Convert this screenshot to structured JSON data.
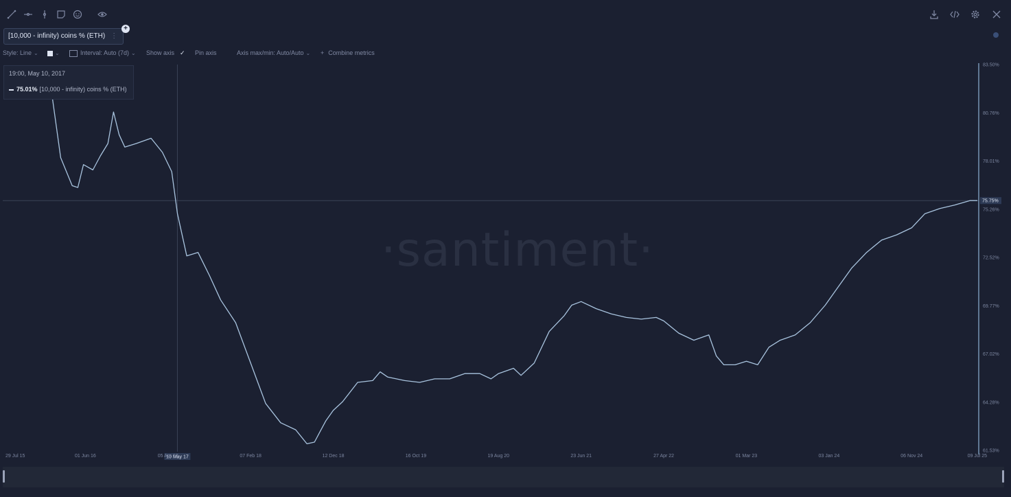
{
  "toolbar": {
    "left_icons": [
      "line-draw-icon",
      "horizontal-ray-icon",
      "vertical-line-icon",
      "sticky-note-icon",
      "emoji-icon",
      "eye-icon"
    ],
    "right_icons": [
      "download-icon",
      "embed-code-icon",
      "settings-gear-icon",
      "close-icon"
    ]
  },
  "metric": {
    "label": "[10,000 - infinity) coins % (ETH)",
    "dots": "⋮",
    "add": "+"
  },
  "settings": {
    "style": "Style: Line",
    "interval": "Interval: Auto (7d)",
    "show_axis": "Show axis",
    "pin_axis": "Pin axis",
    "axis_maxmin": "Axis max/min: Auto/Auto",
    "combine": "Combine metrics",
    "combine_plus": "+"
  },
  "tooltip": {
    "date": "19:00, May 10, 2017",
    "value": "75.01%",
    "series": "[10,000 - infinity) coins % (ETH)"
  },
  "watermark": "·santiment·",
  "colors": {
    "background": "#1b2031",
    "line": "#a9c4df",
    "axis": "#8fb3d6",
    "grid_text": "#7c86a0"
  },
  "chart_data": {
    "type": "line",
    "series_label": "[10,000 - infinity) coins % (ETH)",
    "yticks": [
      "83.50%",
      "80.76%",
      "78.01%",
      "75.26%",
      "72.52%",
      "69.77%",
      "67.02%",
      "64.28%",
      "61.53%"
    ],
    "ylim": [
      61.53,
      83.5
    ],
    "xticks": [
      "29 Jul 15",
      "01 Jun 16",
      "05 Apr 17",
      "07 Feb 18",
      "12 Dec 18",
      "16 Oct 19",
      "19 Aug 20",
      "23 Jun 21",
      "27 Apr 22",
      "01 Mar 23",
      "03 Jan 24",
      "06 Nov 24",
      "09 Jul 25"
    ],
    "xlim": [
      "2015-07-29",
      "2025-07-09"
    ],
    "crosshair_label": "10 May 17",
    "current_value_label": "75.75%",
    "points": [
      [
        "2016-01-20",
        82.7
      ],
      [
        "2016-03-01",
        78.2
      ],
      [
        "2016-04-13",
        76.6
      ],
      [
        "2016-05-04",
        76.5
      ],
      [
        "2016-05-25",
        77.8
      ],
      [
        "2016-06-29",
        77.5
      ],
      [
        "2016-07-27",
        78.3
      ],
      [
        "2016-08-24",
        79.0
      ],
      [
        "2016-09-14",
        80.8
      ],
      [
        "2016-10-05",
        79.5
      ],
      [
        "2016-10-26",
        78.8
      ],
      [
        "2016-12-07",
        79.0
      ],
      [
        "2017-02-01",
        79.3
      ],
      [
        "2017-03-15",
        78.5
      ],
      [
        "2017-04-19",
        77.4
      ],
      [
        "2017-05-10",
        75.01
      ],
      [
        "2017-06-14",
        72.6
      ],
      [
        "2017-07-26",
        72.8
      ],
      [
        "2017-09-06",
        71.5
      ],
      [
        "2017-10-18",
        70.1
      ],
      [
        "2017-12-13",
        68.8
      ],
      [
        "2018-02-07",
        66.5
      ],
      [
        "2018-04-04",
        64.2
      ],
      [
        "2018-05-30",
        63.1
      ],
      [
        "2018-07-25",
        62.7
      ],
      [
        "2018-09-05",
        61.9
      ],
      [
        "2018-10-03",
        62.0
      ],
      [
        "2018-10-24",
        62.6
      ],
      [
        "2018-11-14",
        63.2
      ],
      [
        "2018-12-12",
        63.8
      ],
      [
        "2019-01-16",
        64.3
      ],
      [
        "2019-03-13",
        65.4
      ],
      [
        "2019-05-08",
        65.5
      ],
      [
        "2019-06-05",
        66.0
      ],
      [
        "2019-07-03",
        65.7
      ],
      [
        "2019-09-04",
        65.5
      ],
      [
        "2019-10-30",
        65.4
      ],
      [
        "2019-12-25",
        65.6
      ],
      [
        "2020-02-19",
        65.6
      ],
      [
        "2020-04-15",
        65.9
      ],
      [
        "2020-06-10",
        65.9
      ],
      [
        "2020-07-22",
        65.6
      ],
      [
        "2020-08-19",
        65.9
      ],
      [
        "2020-10-14",
        66.2
      ],
      [
        "2020-11-11",
        65.8
      ],
      [
        "2020-12-30",
        66.5
      ],
      [
        "2021-02-24",
        68.3
      ],
      [
        "2021-04-21",
        69.2
      ],
      [
        "2021-05-19",
        69.8
      ],
      [
        "2021-06-23",
        70.0
      ],
      [
        "2021-08-18",
        69.6
      ],
      [
        "2021-10-13",
        69.3
      ],
      [
        "2021-12-08",
        69.1
      ],
      [
        "2022-02-02",
        69.0
      ],
      [
        "2022-03-30",
        69.1
      ],
      [
        "2022-04-27",
        68.9
      ],
      [
        "2022-06-22",
        68.2
      ],
      [
        "2022-08-17",
        67.8
      ],
      [
        "2022-10-12",
        68.1
      ],
      [
        "2022-11-09",
        66.9
      ],
      [
        "2022-12-07",
        66.4
      ],
      [
        "2023-01-18",
        66.4
      ],
      [
        "2023-03-01",
        66.6
      ],
      [
        "2023-04-12",
        66.4
      ],
      [
        "2023-05-24",
        67.4
      ],
      [
        "2023-07-05",
        67.8
      ],
      [
        "2023-08-30",
        68.1
      ],
      [
        "2023-10-25",
        68.8
      ],
      [
        "2023-12-20",
        69.8
      ],
      [
        "2024-01-31",
        70.7
      ],
      [
        "2024-03-27",
        71.9
      ],
      [
        "2024-05-22",
        72.8
      ],
      [
        "2024-07-17",
        73.5
      ],
      [
        "2024-09-11",
        73.8
      ],
      [
        "2024-11-06",
        74.2
      ],
      [
        "2024-12-25",
        75.0
      ],
      [
        "2025-02-19",
        75.3
      ],
      [
        "2025-04-16",
        75.5
      ],
      [
        "2025-06-11",
        75.75
      ],
      [
        "2025-07-09",
        75.75
      ]
    ]
  }
}
